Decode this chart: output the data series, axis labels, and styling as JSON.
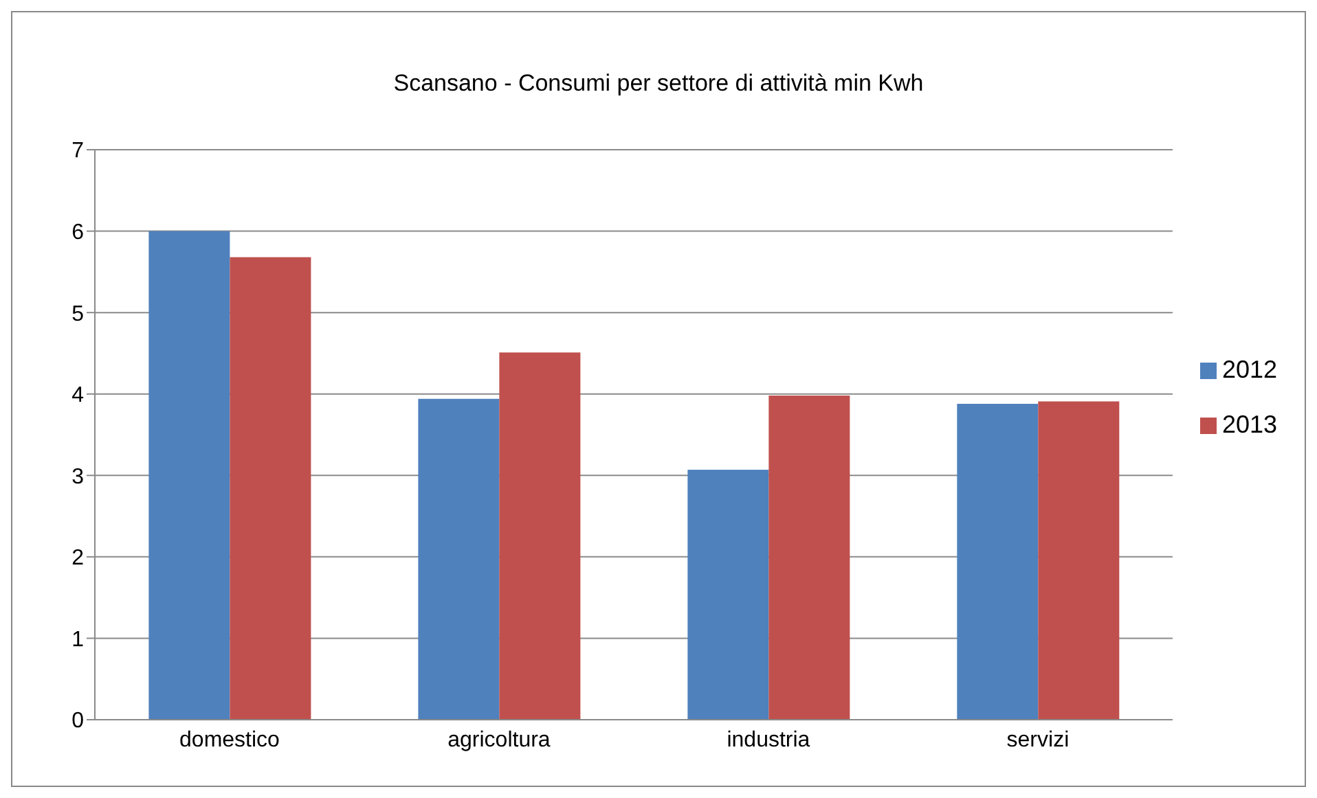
{
  "chart_data": {
    "type": "bar",
    "title": "Scansano - Consumi per settore di attività min Kwh",
    "categories": [
      "domestico",
      "agricoltura",
      "industria",
      "servizi"
    ],
    "series": [
      {
        "name": "2012",
        "color": "#4f81bd",
        "values": [
          6.0,
          3.94,
          3.07,
          3.88
        ]
      },
      {
        "name": "2013",
        "color": "#c0504d",
        "values": [
          5.68,
          4.51,
          3.98,
          3.91
        ]
      }
    ],
    "ylim": [
      0,
      7
    ],
    "yticks": [
      0,
      1,
      2,
      3,
      4,
      5,
      6,
      7
    ],
    "grid": "y",
    "legend": "right"
  }
}
